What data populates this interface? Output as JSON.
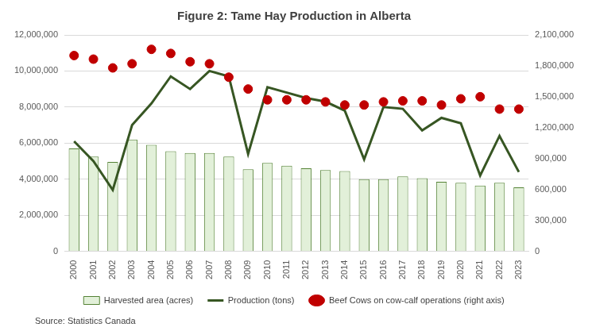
{
  "chart_data": {
    "type": "bar",
    "title": "Figure 2: Tame Hay Production in Alberta",
    "annotations": [
      "Source: Statistics Canada"
    ],
    "categories": [
      "2000",
      "2001",
      "2002",
      "2003",
      "2004",
      "2005",
      "2006",
      "2007",
      "2008",
      "2009",
      "2010",
      "2011",
      "2012",
      "2013",
      "2014",
      "2015",
      "2016",
      "2017",
      "2018",
      "2019",
      "2020",
      "2021",
      "2022",
      "2023"
    ],
    "series": [
      {
        "name": "Harvested area (acres)",
        "type": "bar",
        "color": "#e2f0d9",
        "values": [
          5700000,
          5250000,
          4950000,
          6200000,
          5900000,
          5550000,
          5450000,
          5450000,
          5250000,
          4550000,
          4900000,
          4750000,
          4600000,
          4500000,
          4450000,
          4000000,
          4000000,
          4150000,
          4050000,
          3850000,
          3800000,
          3650000,
          3800000,
          3550000
        ]
      },
      {
        "name": "Production (tons)",
        "type": "line",
        "color": "#375623",
        "marker": "none",
        "line_style": "solid",
        "values": [
          6100000,
          5000000,
          3400000,
          7000000,
          8200000,
          9700000,
          9000000,
          10000000,
          9700000,
          5400000,
          9100000,
          8800000,
          8500000,
          8300000,
          7800000,
          5100000,
          8000000,
          7900000,
          6700000,
          7400000,
          7100000,
          4200000,
          6400000,
          4400000
        ]
      },
      {
        "name": "Beef Cows on cow-calf operations (right axis)",
        "type": "scatter",
        "color": "#c00000",
        "marker": "circle",
        "axis": "y2",
        "values": [
          1900000,
          1865000,
          1780000,
          1820000,
          1960000,
          1920000,
          1840000,
          1820000,
          1690000,
          1575000,
          1470000,
          1470000,
          1470000,
          1450000,
          1420000,
          1420000,
          1450000,
          1460000,
          1460000,
          1420000,
          1480000,
          1500000,
          1380000,
          1380000
        ]
      }
    ],
    "ylim": [
      0,
      12000000
    ],
    "yticks": [
      0,
      {
        "value": 2000000,
        "label": "2,000,000"
      },
      {
        "value": 4000000,
        "label": "4,000,000"
      },
      {
        "value": 6000000,
        "label": "6,000,000"
      },
      {
        "value": 8000000,
        "label": "8,000,000"
      },
      {
        "value": 10000000,
        "label": "10,000,000"
      },
      {
        "value": 12000000,
        "label": "12,000,000"
      }
    ],
    "y2lim": [
      0,
      2100000
    ],
    "y2ticks": [
      0,
      {
        "value": 300000,
        "label": "300,000"
      },
      {
        "value": 600000,
        "label": "600,000"
      },
      {
        "value": 900000,
        "label": "900,000"
      },
      {
        "value": 1200000,
        "label": "1,200,000"
      },
      {
        "value": 1500000,
        "label": "1,500,000"
      },
      {
        "value": 1800000,
        "label": "1,800,000"
      },
      {
        "value": 2100000,
        "label": "2,100,000"
      }
    ],
    "grid": true,
    "legend": "bottom"
  }
}
